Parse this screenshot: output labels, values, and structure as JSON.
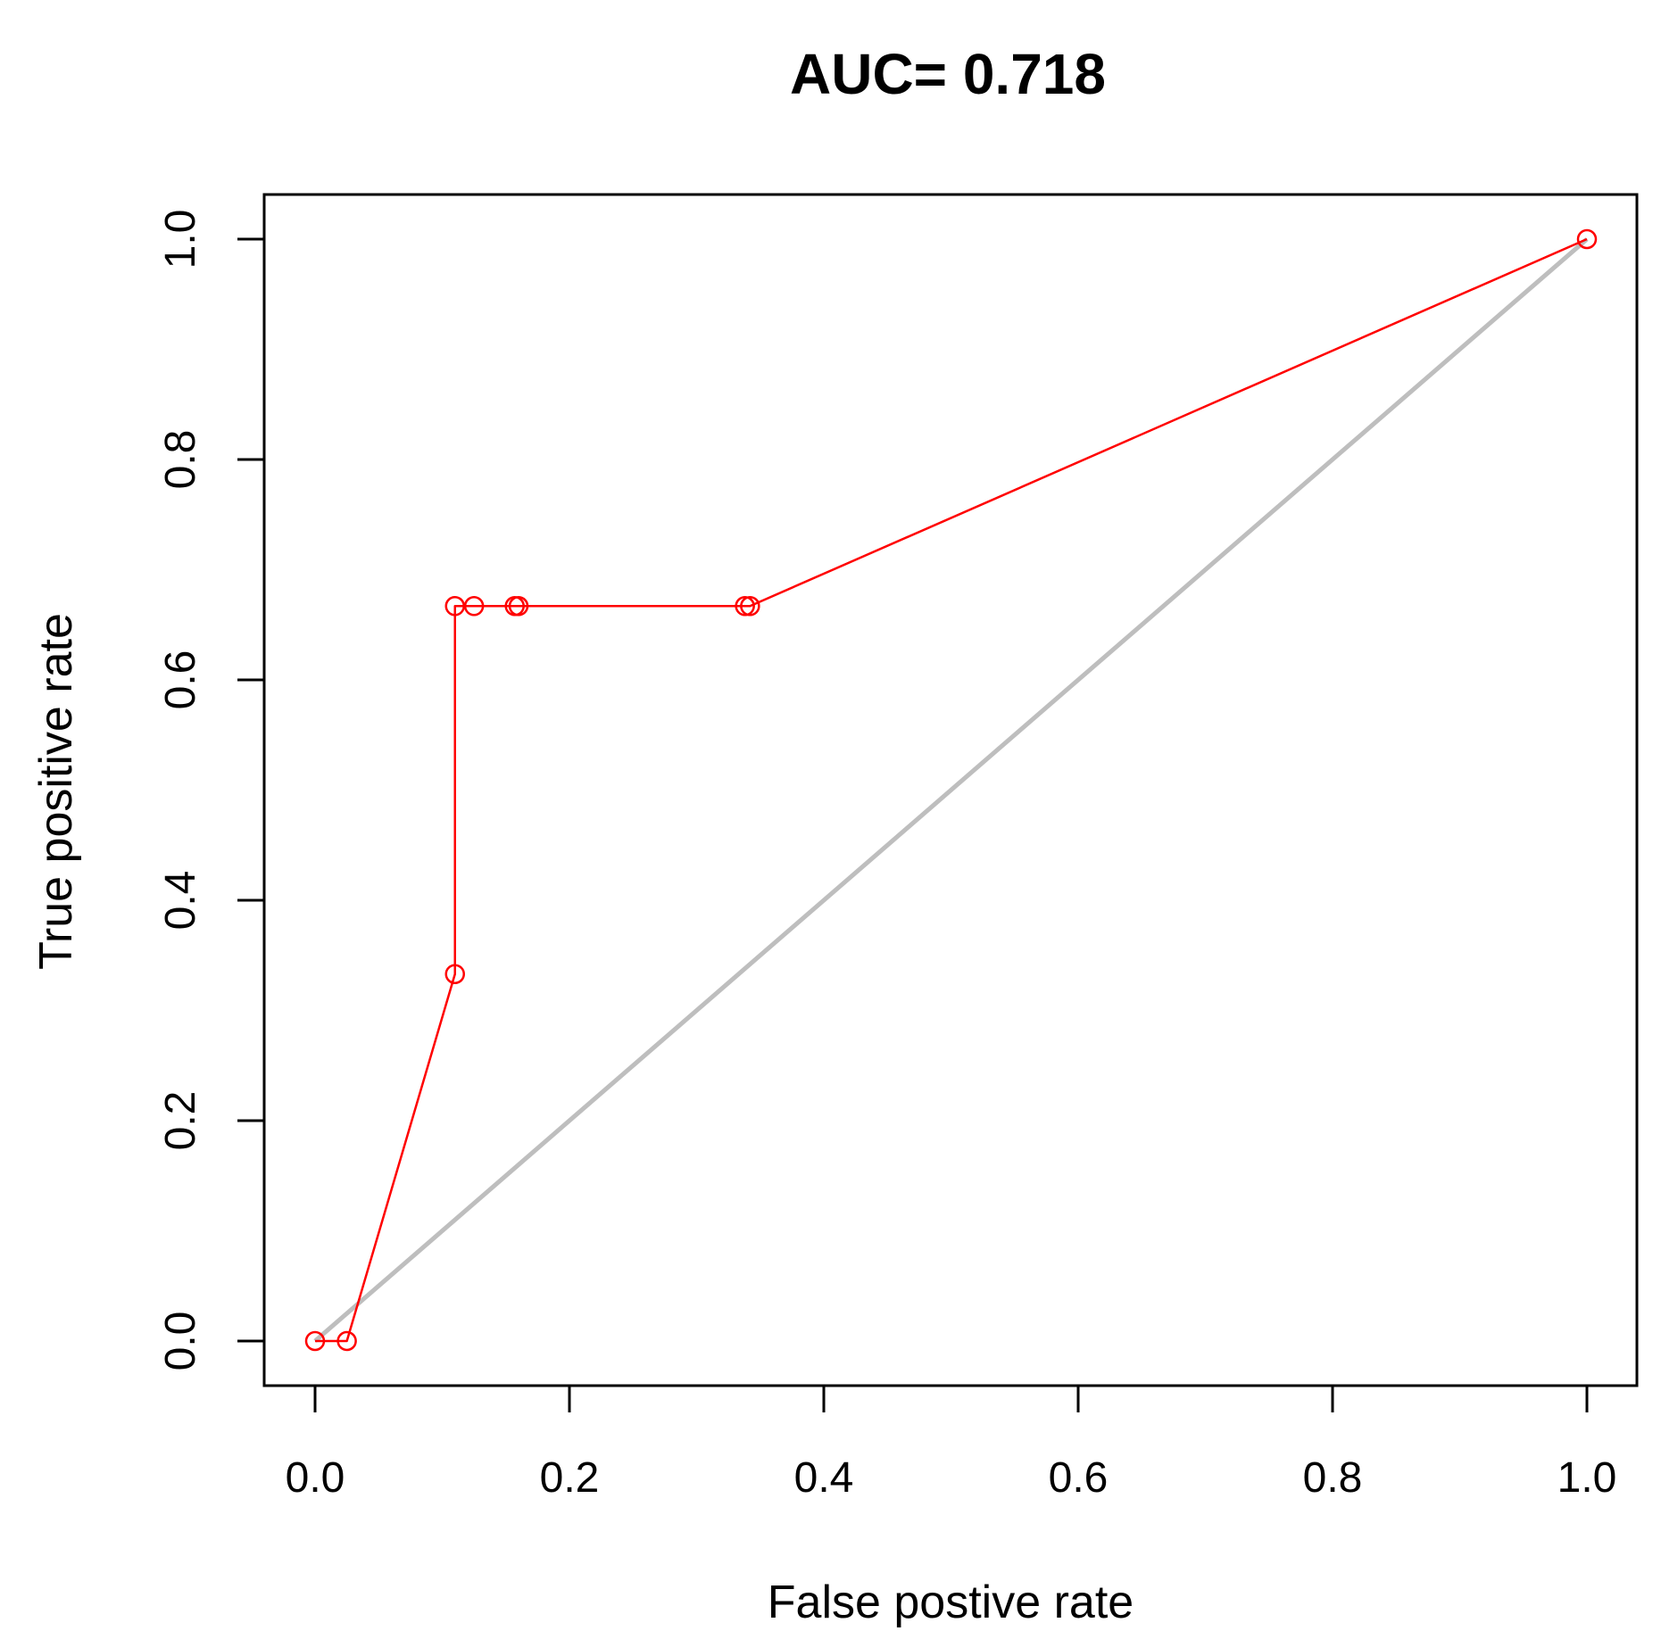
{
  "chart_data": {
    "type": "line",
    "title": "AUC= 0.718",
    "xlabel": "False postive rate",
    "ylabel": "True positive rate",
    "xlim": [
      0.0,
      1.0
    ],
    "ylim": [
      0.0,
      1.0
    ],
    "x_ticks": [
      "0.0",
      "0.2",
      "0.4",
      "0.6",
      "0.8",
      "1.0"
    ],
    "y_ticks": [
      "0.0",
      "0.2",
      "0.4",
      "0.6",
      "0.8",
      "1.0"
    ],
    "grid": false,
    "series": [
      {
        "color": "#ff0000",
        "marker": "open-circle",
        "points": [
          {
            "x": 0.0,
            "y": 0.0
          },
          {
            "x": 0.025,
            "y": 0.0
          },
          {
            "x": 0.11,
            "y": 0.333
          },
          {
            "x": 0.11,
            "y": 0.667
          },
          {
            "x": 0.125,
            "y": 0.667
          },
          {
            "x": 0.157,
            "y": 0.667
          },
          {
            "x": 0.16,
            "y": 0.667
          },
          {
            "x": 0.338,
            "y": 0.667
          },
          {
            "x": 0.342,
            "y": 0.667
          },
          {
            "x": 1.0,
            "y": 1.0
          }
        ]
      },
      {
        "color": "#bebebe",
        "marker": "none",
        "points": [
          {
            "x": 0.0,
            "y": 0.0
          },
          {
            "x": 1.0,
            "y": 1.0
          }
        ]
      }
    ]
  }
}
